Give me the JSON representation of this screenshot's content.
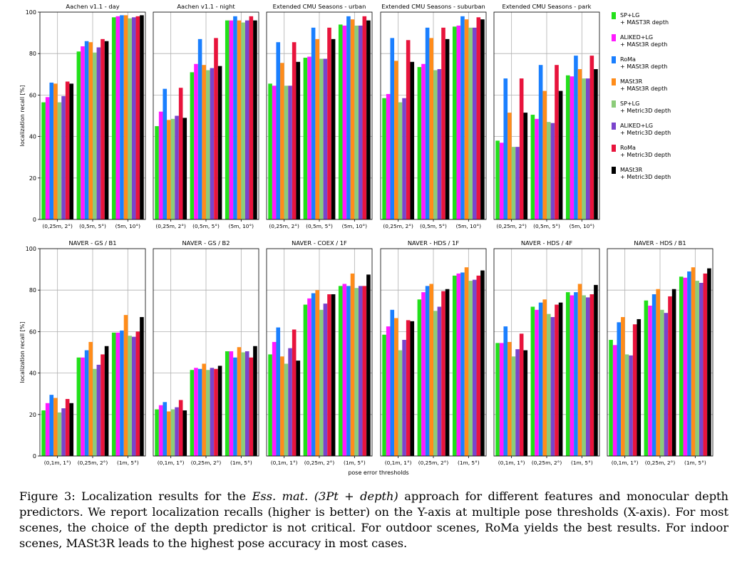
{
  "caption": {
    "label": "Figure 3:",
    "before_method": "Localization results for the",
    "method": "Ess. mat. (3Pt + depth)",
    "after_method": "approach for different features and monocular depth predictors. We report localization recalls (higher is better) on the Y-axis at multiple pose thresholds (X-axis). For most scenes, the choice of the depth predictor is not critical. For outdoor scenes, RoMa yields the best results. For indoor scenes, MASt3R leads to the highest pose accuracy in most cases."
  },
  "chart_data": {
    "type": "bar",
    "ylabel": "localization recall [%]",
    "xlabel": "pose error thresholds",
    "ylim": [
      0,
      100
    ],
    "yticks": [
      0,
      20,
      40,
      60,
      80,
      100
    ],
    "grid": true,
    "legend_position": "right",
    "series": [
      {
        "name": "SP+LG\n+ MAST3R depth",
        "color": "#22e01a"
      },
      {
        "name": "ALIKED+LG\n+ MASt3R depth",
        "color": "#ff1aff"
      },
      {
        "name": "RoMa\n+ MASt3R depth",
        "color": "#1a7fff"
      },
      {
        "name": "MASt3R\n+ MASt3R depth",
        "color": "#ff8c1a"
      },
      {
        "name": "SP+LG\n+ Metric3D depth",
        "color": "#8ccc7a"
      },
      {
        "name": "ALIKED+LG\n+ Metric3D depth",
        "color": "#7a44cc"
      },
      {
        "name": "RoMa\n+ Metric3D depth",
        "color": "#e8143c"
      },
      {
        "name": "MASt3R\n+ Metric3D depth",
        "color": "#000000"
      }
    ],
    "panels": [
      {
        "title": "Aachen v1.1 - day",
        "categories": [
          "(0,25m, 2°)",
          "(0,5m, 5°)",
          "(5m, 10°)"
        ],
        "values": [
          [
            56.5,
            59,
            66,
            65.5,
            56.5,
            59.5,
            66.5,
            65.5
          ],
          [
            81,
            83.5,
            86,
            85.5,
            80.5,
            83,
            87,
            86
          ],
          [
            97.5,
            98,
            98.5,
            98.5,
            97,
            97.5,
            98,
            98.5
          ]
        ]
      },
      {
        "title": "Aachen v1.1 - night",
        "categories": [
          "(0,25m, 2°)",
          "(0,5m, 5°)",
          "(5m, 10°)"
        ],
        "values": [
          [
            45,
            52,
            63,
            48,
            48.5,
            50,
            63.5,
            49
          ],
          [
            71,
            75,
            87,
            74.5,
            72,
            73,
            87.5,
            74
          ],
          [
            96,
            96,
            98,
            96,
            95,
            96,
            98,
            96
          ]
        ]
      },
      {
        "title": "Extended CMU Seasons - urban",
        "categories": [
          "(0,25m, 2°)",
          "(0,5m, 5°)",
          "(5m, 10°)"
        ],
        "values": [
          [
            65.5,
            64.5,
            85.5,
            75.5,
            64.5,
            64.5,
            85.5,
            76
          ],
          [
            78,
            78.5,
            92.5,
            87,
            77.5,
            77.5,
            92.5,
            87
          ],
          [
            94,
            93.5,
            98,
            96.5,
            93.5,
            93.5,
            98,
            96
          ]
        ]
      },
      {
        "title": "Extended CMU Seasons - suburban",
        "categories": [
          "(0,25m, 2°)",
          "(0,5m, 5°)",
          "(5m, 10°)"
        ],
        "values": [
          [
            58.5,
            60.5,
            87.5,
            76.5,
            56.5,
            58.5,
            86.5,
            76
          ],
          [
            73.5,
            75,
            92.5,
            87.5,
            72,
            72.5,
            92.5,
            87
          ],
          [
            93,
            93.5,
            98,
            96.5,
            92.5,
            92.5,
            97.5,
            96.5
          ]
        ]
      },
      {
        "title": "Extended CMU Seasons - park",
        "categories": [
          "(0,25m, 2°)",
          "(0,5m, 5°)",
          "(5m, 10°)"
        ],
        "values": [
          [
            38,
            37,
            68,
            51.5,
            35,
            35,
            68,
            51.5
          ],
          [
            50.5,
            48.5,
            74.5,
            62,
            47,
            46.5,
            74.5,
            62
          ],
          [
            69.5,
            69,
            79,
            72.5,
            68,
            68,
            79,
            72.5
          ]
        ]
      },
      {
        "title": "NAVER - GS / B1",
        "categories": [
          "(0,1m, 1°)",
          "(0,25m, 2°)",
          "(1m, 5°)"
        ],
        "values": [
          [
            22,
            25.5,
            29.5,
            28,
            21,
            23,
            27.5,
            25.5
          ],
          [
            47.5,
            47.5,
            51,
            55,
            42,
            44,
            49,
            53
          ],
          [
            59.5,
            59.5,
            60.5,
            68,
            58,
            57.5,
            60,
            67
          ]
        ]
      },
      {
        "title": "NAVER - GS / B2",
        "categories": [
          "(0,1m, 1°)",
          "(0,25m, 2°)",
          "(1m, 5°)"
        ],
        "values": [
          [
            22.5,
            24.5,
            26,
            21.5,
            22.5,
            23.5,
            27,
            22
          ],
          [
            41.5,
            42.5,
            42,
            44.5,
            41.5,
            42.5,
            42,
            43.5
          ],
          [
            50.5,
            50.5,
            47.5,
            52.5,
            50,
            50.5,
            47.5,
            53
          ]
        ]
      },
      {
        "title": "NAVER - COEX / 1F",
        "categories": [
          "(0,1m, 1°)",
          "(0,25m, 2°)",
          "(1m, 5°)"
        ],
        "values": [
          [
            49,
            55,
            62,
            48,
            44.5,
            52,
            61,
            46
          ],
          [
            73,
            76,
            78.5,
            80,
            70.5,
            73.5,
            78,
            78
          ],
          [
            82,
            83,
            82,
            88,
            81,
            82,
            82,
            87.5
          ]
        ]
      },
      {
        "title": "NAVER - HDS / 1F",
        "categories": [
          "(0,1m, 1°)",
          "(0,25m, 2°)",
          "(1m, 5°)"
        ],
        "values": [
          [
            58.5,
            62.5,
            70.5,
            66.5,
            51,
            56,
            65.5,
            65
          ],
          [
            75.5,
            79,
            82,
            83,
            70,
            72,
            79.5,
            80.5
          ],
          [
            87,
            88,
            88.5,
            91,
            84.5,
            85,
            87,
            89.5
          ]
        ]
      },
      {
        "title": "NAVER - HDS / 4F",
        "categories": [
          "(0,1m, 1°)",
          "(0,25m, 2°)",
          "(1m, 5°)"
        ],
        "values": [
          [
            54.5,
            54.5,
            62.5,
            55,
            48,
            51.5,
            59,
            51
          ],
          [
            72,
            70.5,
            74,
            75.5,
            68.5,
            67,
            73,
            74
          ],
          [
            79,
            77.5,
            79,
            83,
            77.5,
            76.5,
            78,
            82.5
          ]
        ]
      },
      {
        "title": "NAVER - HDS / B1",
        "categories": [
          "(0,1m, 1°)",
          "(0,25m, 2°)",
          "(1m, 5°)"
        ],
        "values": [
          [
            56,
            53.5,
            64.5,
            67,
            49,
            48.5,
            63.5,
            66
          ],
          [
            75,
            72.5,
            78,
            80.5,
            70.5,
            69,
            77,
            80.5
          ],
          [
            86.5,
            86,
            89,
            91,
            84.5,
            83.5,
            88,
            90.5
          ]
        ]
      }
    ]
  }
}
